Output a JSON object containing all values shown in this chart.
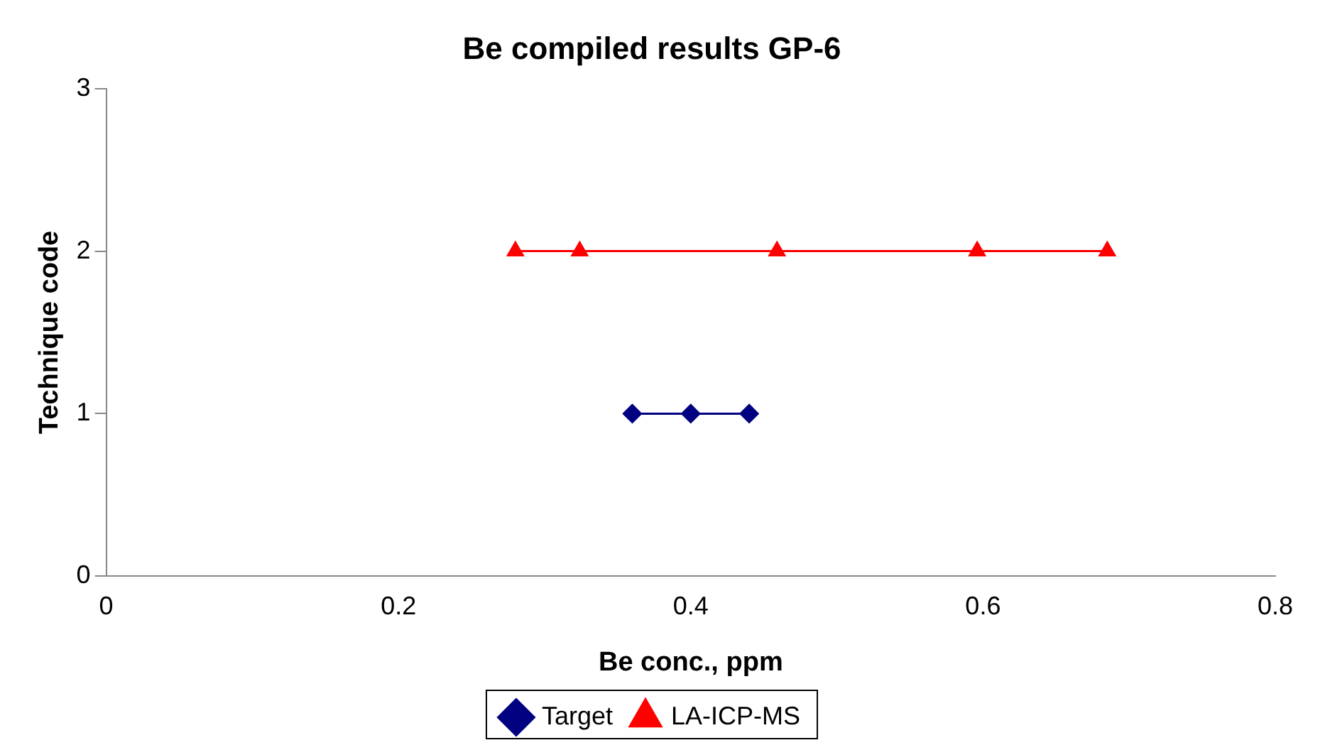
{
  "chart_data": {
    "type": "line",
    "title": "Be compiled results GP-6",
    "xlabel": "Be conc., ppm",
    "ylabel": "Technique code",
    "xlim": [
      0,
      0.8
    ],
    "xticks": [
      0,
      0.2,
      0.4,
      0.6,
      0.8
    ],
    "ylim": [
      0,
      3
    ],
    "yticks": [
      0,
      1,
      2,
      3
    ],
    "grid": false,
    "legend": "bottom",
    "series": [
      {
        "name": "Target",
        "color": "#000080",
        "marker": "diamond",
        "x": [
          0.36,
          0.4,
          0.44
        ],
        "values": [
          1,
          1,
          1
        ]
      },
      {
        "name": "LA-ICP-MS",
        "color": "#ff0000",
        "marker": "triangle",
        "x": [
          0.28,
          0.324,
          0.459,
          0.596,
          0.685
        ],
        "values": [
          2,
          2,
          2,
          2,
          2
        ]
      }
    ]
  }
}
